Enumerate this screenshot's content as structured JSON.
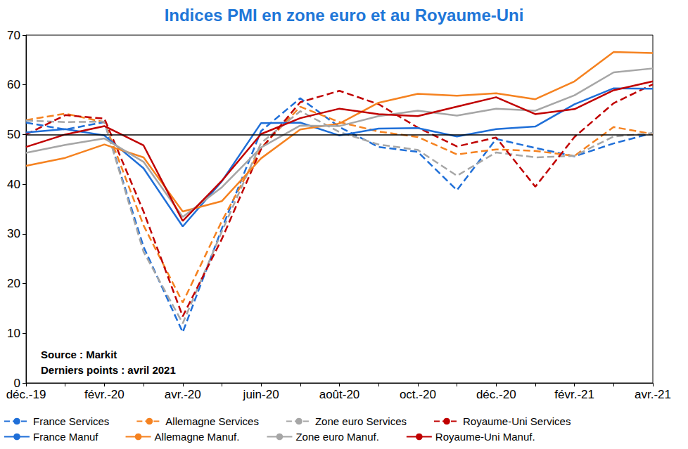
{
  "chart_data": {
    "type": "line",
    "title": "Indices PMI en zone euro et au Royaume-Uni",
    "annotations": [
      "Source : Markit",
      "Derniers points : avril 2021"
    ],
    "categories": [
      "déc.-19",
      null,
      "févr.-20",
      null,
      "avr.-20",
      null,
      "juin-20",
      null,
      "août-20",
      null,
      "oct.-20",
      null,
      "déc.-20",
      null,
      "févr.-21",
      null,
      "avr.-21"
    ],
    "ylim": [
      0,
      70
    ],
    "yticks": [
      0,
      10,
      20,
      30,
      40,
      50,
      60,
      70
    ],
    "reference_line": 50,
    "grid": false,
    "legend": "bottom",
    "series": [
      {
        "name": "France Services",
        "color": "#1f6fd8",
        "line_style": "dashed",
        "values": [
          52.4,
          51.0,
          52.5,
          27.4,
          10.2,
          31.1,
          50.7,
          57.3,
          51.5,
          47.5,
          46.5,
          38.8,
          49.1,
          47.3,
          45.6,
          48.2,
          50.3
        ]
      },
      {
        "name": "Allemagne Services",
        "color": "#f58220",
        "line_style": "dashed",
        "values": [
          52.9,
          54.2,
          52.5,
          31.7,
          16.2,
          32.6,
          47.3,
          55.6,
          52.5,
          50.6,
          49.5,
          46.0,
          47.0,
          46.7,
          45.7,
          51.5,
          50.1
        ]
      },
      {
        "name": "Zone euro Services",
        "color": "#a6a6a6",
        "line_style": "dashed",
        "values": [
          52.8,
          52.5,
          52.6,
          26.4,
          12.0,
          30.5,
          48.3,
          54.7,
          50.5,
          48.0,
          46.9,
          41.7,
          46.4,
          45.4,
          45.7,
          49.6,
          50.3
        ]
      },
      {
        "name": "Royaume-Uni Services",
        "color": "#c00000",
        "line_style": "dashed",
        "values": [
          50.0,
          53.9,
          53.2,
          34.5,
          13.4,
          29.0,
          47.1,
          56.5,
          58.8,
          56.1,
          51.4,
          47.6,
          49.4,
          39.5,
          49.5,
          56.3,
          60.1
        ]
      },
      {
        "name": "France Manuf",
        "color": "#1f6fd8",
        "line_style": "solid",
        "values": [
          50.4,
          51.1,
          49.8,
          43.2,
          31.5,
          40.6,
          52.3,
          52.4,
          49.8,
          51.2,
          51.3,
          49.6,
          51.1,
          51.6,
          56.1,
          59.3,
          59.2
        ]
      },
      {
        "name": "Allemagne Manuf.",
        "color": "#f58220",
        "line_style": "solid",
        "values": [
          43.7,
          45.3,
          48.0,
          45.4,
          34.5,
          36.6,
          45.2,
          51.0,
          52.2,
          56.4,
          58.2,
          57.8,
          58.3,
          57.1,
          60.7,
          66.6,
          66.4
        ]
      },
      {
        "name": "Zone euro Manuf.",
        "color": "#a6a6a6",
        "line_style": "solid",
        "values": [
          46.3,
          47.9,
          49.2,
          44.5,
          33.4,
          39.4,
          47.4,
          51.8,
          51.7,
          53.7,
          54.8,
          53.8,
          55.2,
          54.8,
          57.9,
          62.5,
          63.3
        ]
      },
      {
        "name": "Royaume-Uni Manuf.",
        "color": "#c00000",
        "line_style": "solid",
        "values": [
          47.5,
          50.0,
          51.7,
          47.8,
          32.6,
          40.7,
          50.1,
          53.3,
          55.2,
          54.1,
          53.7,
          55.6,
          57.5,
          54.1,
          55.1,
          58.9,
          60.7
        ]
      }
    ]
  }
}
